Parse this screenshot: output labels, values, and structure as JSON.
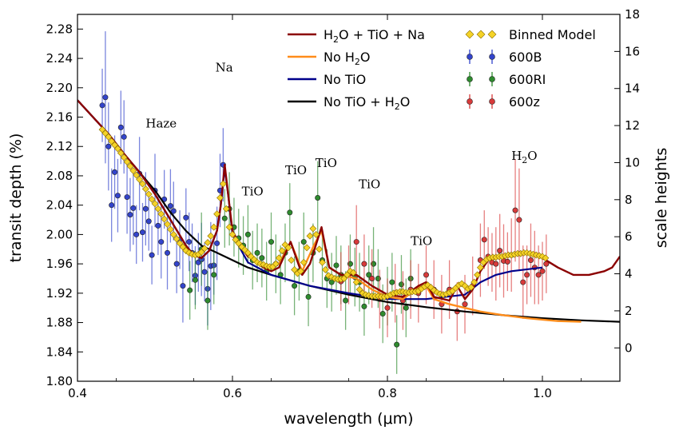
{
  "chart_data": {
    "type": "scatter",
    "xlabel": "wavelength (μm)",
    "ylabel": "transit depth (%)",
    "y2label": "scale heights",
    "xlim": [
      0.4,
      1.1
    ],
    "ylim": [
      1.8,
      2.3
    ],
    "y2lim": [
      -1.8,
      18.0
    ],
    "xticks": [
      "0.4",
      "0.6",
      "0.8",
      "1.0"
    ],
    "xtick_values": [
      0.4,
      0.6,
      0.8,
      1.0
    ],
    "yticks": [
      "1.80",
      "1.84",
      "1.88",
      "1.92",
      "1.96",
      "2.00",
      "2.04",
      "2.08",
      "2.12",
      "2.16",
      "2.20",
      "2.24",
      "2.28"
    ],
    "ytick_values": [
      1.8,
      1.84,
      1.88,
      1.92,
      1.96,
      2.0,
      2.04,
      2.08,
      2.12,
      2.16,
      2.2,
      2.24,
      2.28
    ],
    "y2ticks": [
      "0",
      "2",
      "4",
      "6",
      "8",
      "10",
      "12",
      "14",
      "16",
      "18"
    ],
    "y2tick_values": [
      0,
      2,
      4,
      6,
      8,
      10,
      12,
      14,
      16,
      18
    ],
    "grid": false,
    "legend_placement": "top-right",
    "legend": {
      "lines": [
        {
          "label_main": "H",
          "sub1": "2",
          "label_rest": "O + TiO + Na",
          "color": "#8B0000"
        },
        {
          "label_main": "No H",
          "sub1": "2",
          "label_rest": "O",
          "color": "#FF8C1A"
        },
        {
          "label_main": "No TiO",
          "sub1": "",
          "label_rest": "",
          "color": "#00008B"
        },
        {
          "label_main": "No TiO + H",
          "sub1": "2",
          "label_rest": "O",
          "color": "#000000"
        }
      ],
      "markers": [
        {
          "label": "Binned Model",
          "color": "#F5D327"
        },
        {
          "label": "600B",
          "color": "#3344CC"
        },
        {
          "label": "600RI",
          "color": "#2E8B2E"
        },
        {
          "label": "600z",
          "color": "#D83A3A"
        }
      ]
    },
    "annotations": [
      {
        "text": "Haze",
        "x": 0.488,
        "y": 2.146
      },
      {
        "text": "Na",
        "x": 0.578,
        "y": 2.222
      },
      {
        "text": "TiO",
        "x": 0.612,
        "y": 2.053
      },
      {
        "text": "TiO",
        "x": 0.668,
        "y": 2.082
      },
      {
        "text": "TiO",
        "x": 0.707,
        "y": 2.092
      },
      {
        "text": "TiO",
        "x": 0.763,
        "y": 2.063
      },
      {
        "text": "TiO",
        "x": 0.83,
        "y": 1.986
      },
      {
        "text": "H",
        "sub": "2",
        "rest": "O",
        "x": 0.96,
        "y": 2.102
      }
    ],
    "series": [
      {
        "name": "No TiO + H2O",
        "kind": "line",
        "color": "#000000",
        "x": [
          0.4,
          0.42,
          0.44,
          0.46,
          0.48,
          0.5,
          0.52,
          0.54,
          0.56,
          0.58,
          0.6,
          0.62,
          0.65,
          0.7,
          0.75,
          0.8,
          0.85,
          0.9,
          0.95,
          1.0,
          1.05,
          1.1
        ],
        "y": [
          2.183,
          2.16,
          2.137,
          2.11,
          2.085,
          2.06,
          2.03,
          2.005,
          1.985,
          1.975,
          1.965,
          1.955,
          1.945,
          1.93,
          1.918,
          1.908,
          1.901,
          1.895,
          1.89,
          1.886,
          1.883,
          1.881
        ]
      },
      {
        "name": "No TiO",
        "kind": "line",
        "color": "#00008B",
        "x": [
          0.4,
          0.42,
          0.44,
          0.46,
          0.48,
          0.5,
          0.52,
          0.54,
          0.55,
          0.56,
          0.57,
          0.58,
          0.585,
          0.59,
          0.595,
          0.6,
          0.62,
          0.65,
          0.7,
          0.75,
          0.8,
          0.85,
          0.9,
          0.92,
          0.94,
          0.96,
          1.0
        ],
        "y": [
          2.183,
          2.16,
          2.137,
          2.11,
          2.085,
          2.055,
          2.02,
          1.985,
          1.972,
          1.968,
          1.978,
          2.005,
          2.04,
          2.09,
          2.05,
          2.0,
          1.962,
          1.945,
          1.93,
          1.92,
          1.912,
          1.912,
          1.918,
          1.935,
          1.945,
          1.95,
          1.955
        ]
      },
      {
        "name": "No H2O",
        "kind": "line",
        "color": "#FF8C1A",
        "x": [
          0.6,
          0.62,
          0.64,
          0.66,
          0.675,
          0.69,
          0.705,
          0.715,
          0.725,
          0.74,
          0.76,
          0.78,
          0.8,
          0.82,
          0.84,
          0.85,
          0.86,
          0.88,
          0.9,
          0.92,
          0.95,
          0.98,
          1.0,
          1.02,
          1.05
        ],
        "y": [
          2.0,
          1.975,
          1.955,
          1.96,
          1.99,
          1.95,
          1.985,
          2.005,
          1.955,
          1.945,
          1.94,
          1.925,
          1.915,
          1.912,
          1.928,
          1.93,
          1.912,
          1.905,
          1.9,
          1.895,
          1.89,
          1.886,
          1.884,
          1.882,
          1.881
        ]
      },
      {
        "name": "H2O + TiO + Na",
        "kind": "line",
        "color": "#8B0000",
        "x": [
          0.4,
          0.42,
          0.44,
          0.46,
          0.48,
          0.5,
          0.52,
          0.54,
          0.55,
          0.56,
          0.57,
          0.58,
          0.585,
          0.59,
          0.595,
          0.6,
          0.61,
          0.62,
          0.63,
          0.64,
          0.65,
          0.66,
          0.675,
          0.69,
          0.7,
          0.715,
          0.725,
          0.74,
          0.76,
          0.78,
          0.8,
          0.82,
          0.84,
          0.85,
          0.86,
          0.88,
          0.89,
          0.9,
          0.91,
          0.92,
          0.93,
          0.95,
          0.97,
          0.99,
          1.0,
          1.02,
          1.04,
          1.06,
          1.08,
          1.09,
          1.1
        ],
        "y": [
          2.183,
          2.16,
          2.137,
          2.11,
          2.085,
          2.055,
          2.02,
          1.985,
          1.972,
          1.968,
          1.978,
          2.005,
          2.04,
          2.095,
          2.05,
          2.005,
          1.985,
          1.97,
          1.965,
          1.955,
          1.95,
          1.955,
          1.99,
          1.945,
          1.96,
          2.01,
          1.955,
          1.945,
          1.945,
          1.93,
          1.918,
          1.915,
          1.93,
          1.935,
          1.915,
          1.91,
          1.93,
          1.912,
          1.925,
          1.95,
          1.965,
          1.97,
          1.975,
          1.972,
          1.968,
          1.955,
          1.945,
          1.945,
          1.95,
          1.955,
          1.97
        ]
      },
      {
        "name": "Binned Model",
        "kind": "markers",
        "color": "#F5D327",
        "x": [
          0.432,
          0.436,
          0.44,
          0.444,
          0.448,
          0.452,
          0.456,
          0.46,
          0.464,
          0.468,
          0.472,
          0.476,
          0.48,
          0.484,
          0.488,
          0.492,
          0.496,
          0.5,
          0.504,
          0.508,
          0.512,
          0.516,
          0.52,
          0.524,
          0.528,
          0.532,
          0.536,
          0.54,
          0.544,
          0.548,
          0.552,
          0.556,
          0.56,
          0.564,
          0.568,
          0.572,
          0.576,
          0.58,
          0.584,
          0.588,
          0.592,
          0.596,
          0.6,
          0.604,
          0.608,
          0.612,
          0.616,
          0.62,
          0.624,
          0.628,
          0.632,
          0.636,
          0.64,
          0.644,
          0.648,
          0.652,
          0.656,
          0.66,
          0.664,
          0.668,
          0.672,
          0.676,
          0.68,
          0.684,
          0.688,
          0.692,
          0.696,
          0.7,
          0.704,
          0.708,
          0.712,
          0.716,
          0.72,
          0.724,
          0.728,
          0.732,
          0.736,
          0.74,
          0.744,
          0.748,
          0.752,
          0.756,
          0.76,
          0.764,
          0.768,
          0.772,
          0.776,
          0.78,
          0.784,
          0.788,
          0.792,
          0.796,
          0.8,
          0.804,
          0.808,
          0.812,
          0.816,
          0.82,
          0.824,
          0.828,
          0.832,
          0.836,
          0.84,
          0.844,
          0.848,
          0.852,
          0.856,
          0.86,
          0.864,
          0.868,
          0.872,
          0.876,
          0.88,
          0.884,
          0.888,
          0.892,
          0.896,
          0.9,
          0.904,
          0.908,
          0.912,
          0.916,
          0.92,
          0.924,
          0.928,
          0.932,
          0.936,
          0.94,
          0.944,
          0.948,
          0.952,
          0.956,
          0.96,
          0.964,
          0.968,
          0.972,
          0.976,
          0.98,
          0.984,
          0.988,
          0.992,
          0.996,
          1.0,
          1.004
        ],
        "y": [
          2.143,
          2.138,
          2.133,
          2.127,
          2.122,
          2.117,
          2.111,
          2.105,
          2.099,
          2.093,
          2.087,
          2.081,
          2.075,
          2.069,
          2.062,
          2.055,
          2.048,
          2.042,
          2.035,
          2.028,
          2.021,
          2.014,
          2.007,
          2.0,
          1.994,
          1.988,
          1.983,
          1.978,
          1.975,
          1.973,
          1.972,
          1.973,
          1.976,
          1.981,
          1.989,
          1.998,
          2.01,
          2.028,
          2.05,
          2.069,
          2.035,
          2.01,
          2.0,
          1.993,
          1.988,
          1.983,
          1.979,
          1.975,
          1.97,
          1.966,
          1.962,
          1.96,
          1.959,
          1.957,
          1.956,
          1.956,
          1.96,
          1.968,
          1.978,
          1.986,
          1.982,
          1.965,
          1.952,
          1.947,
          1.95,
          1.962,
          1.982,
          1.998,
          2.008,
          2.0,
          1.98,
          1.962,
          1.952,
          1.944,
          1.942,
          1.94,
          1.939,
          1.939,
          1.94,
          1.945,
          1.95,
          1.948,
          1.935,
          1.925,
          1.92,
          1.918,
          1.917,
          1.916,
          1.916,
          1.916,
          1.915,
          1.915,
          1.916,
          1.918,
          1.92,
          1.921,
          1.922,
          1.922,
          1.921,
          1.921,
          1.922,
          1.922,
          1.923,
          1.926,
          1.929,
          1.931,
          1.928,
          1.924,
          1.921,
          1.919,
          1.918,
          1.919,
          1.921,
          1.923,
          1.927,
          1.931,
          1.933,
          1.93,
          1.926,
          1.928,
          1.935,
          1.945,
          1.955,
          1.962,
          1.966,
          1.968,
          1.969,
          1.969,
          1.97,
          1.97,
          1.971,
          1.972,
          1.972,
          1.973,
          1.974,
          1.974,
          1.975,
          1.975,
          1.974,
          1.973,
          1.972,
          1.971,
          1.97,
          1.968
        ]
      },
      {
        "name": "600B",
        "kind": "errorbar",
        "color": "#3344CC",
        "x": [
          0.432,
          0.436,
          0.44,
          0.444,
          0.448,
          0.452,
          0.456,
          0.46,
          0.464,
          0.468,
          0.472,
          0.476,
          0.48,
          0.484,
          0.488,
          0.492,
          0.496,
          0.5,
          0.504,
          0.508,
          0.512,
          0.516,
          0.52,
          0.524,
          0.528,
          0.532,
          0.536,
          0.54,
          0.544,
          0.548,
          0.552,
          0.556,
          0.56,
          0.564,
          0.568,
          0.572,
          0.576,
          0.58,
          0.584,
          0.588
        ],
        "y": [
          2.176,
          2.187,
          2.12,
          2.04,
          2.085,
          2.053,
          2.146,
          2.133,
          2.051,
          2.027,
          2.036,
          2.0,
          2.083,
          2.003,
          2.035,
          2.018,
          1.972,
          2.06,
          2.012,
          1.99,
          2.048,
          1.975,
          2.039,
          2.032,
          1.96,
          1.993,
          1.93,
          2.023,
          1.99,
          1.975,
          1.944,
          1.962,
          1.966,
          1.949,
          1.926,
          1.957,
          1.958,
          1.988,
          2.06,
          2.095
        ],
        "err": [
          0.05,
          0.09,
          0.06,
          0.05,
          0.05,
          0.05,
          0.05,
          0.05,
          0.05,
          0.05,
          0.05,
          0.04,
          0.05,
          0.04,
          0.05,
          0.04,
          0.04,
          0.05,
          0.04,
          0.05,
          0.04,
          0.05,
          0.05,
          0.04,
          0.04,
          0.04,
          0.05,
          0.04,
          0.04,
          0.04,
          0.04,
          0.04,
          0.05,
          0.04,
          0.05,
          0.06,
          0.04,
          0.05,
          0.05,
          0.05
        ]
      },
      {
        "name": "600RI",
        "kind": "errorbar",
        "color": "#2E8B2E",
        "x": [
          0.545,
          0.552,
          0.56,
          0.568,
          0.576,
          0.59,
          0.596,
          0.602,
          0.608,
          0.614,
          0.62,
          0.626,
          0.632,
          0.638,
          0.644,
          0.65,
          0.656,
          0.662,
          0.668,
          0.674,
          0.68,
          0.686,
          0.692,
          0.698,
          0.704,
          0.71,
          0.716,
          0.722,
          0.728,
          0.734,
          0.74,
          0.746,
          0.752,
          0.758,
          0.764,
          0.77,
          0.776,
          0.782,
          0.788,
          0.794,
          0.8,
          0.806,
          0.812,
          0.818,
          0.824,
          0.83
        ],
        "y": [
          1.924,
          1.938,
          1.98,
          1.91,
          1.945,
          2.022,
          2.035,
          2.01,
          1.995,
          1.985,
          2.0,
          1.965,
          1.975,
          1.968,
          1.95,
          1.99,
          1.96,
          1.945,
          1.975,
          2.03,
          1.93,
          1.95,
          1.99,
          1.915,
          1.975,
          2.05,
          1.965,
          1.94,
          1.935,
          1.958,
          1.945,
          1.91,
          1.96,
          1.942,
          1.935,
          1.902,
          1.945,
          1.96,
          1.94,
          1.892,
          1.916,
          1.935,
          1.85,
          1.932,
          1.9,
          1.94
        ],
        "err": [
          0.04,
          0.04,
          0.05,
          0.04,
          0.04,
          0.04,
          0.05,
          0.04,
          0.04,
          0.04,
          0.04,
          0.04,
          0.04,
          0.04,
          0.04,
          0.04,
          0.04,
          0.04,
          0.04,
          0.04,
          0.04,
          0.04,
          0.04,
          0.04,
          0.04,
          0.05,
          0.04,
          0.04,
          0.04,
          0.04,
          0.04,
          0.04,
          0.04,
          0.04,
          0.04,
          0.04,
          0.04,
          0.05,
          0.04,
          0.04,
          0.04,
          0.04,
          0.04,
          0.04,
          0.04,
          0.04
        ]
      },
      {
        "name": "600z",
        "kind": "errorbar",
        "color": "#D83A3A",
        "x": [
          0.74,
          0.75,
          0.76,
          0.77,
          0.78,
          0.79,
          0.8,
          0.81,
          0.82,
          0.83,
          0.84,
          0.85,
          0.86,
          0.87,
          0.88,
          0.89,
          0.9,
          0.91,
          0.92,
          0.925,
          0.93,
          0.935,
          0.94,
          0.945,
          0.95,
          0.955,
          0.96,
          0.965,
          0.97,
          0.975,
          0.98,
          0.985,
          0.99,
          0.995,
          1.0,
          1.005
        ],
        "y": [
          1.936,
          1.945,
          1.99,
          1.96,
          1.94,
          1.912,
          1.9,
          1.92,
          1.91,
          1.925,
          1.92,
          1.945,
          1.925,
          1.905,
          1.925,
          1.895,
          1.905,
          1.93,
          1.965,
          1.993,
          1.97,
          1.962,
          1.96,
          1.978,
          1.964,
          1.963,
          1.972,
          2.033,
          2.02,
          1.935,
          1.945,
          1.965,
          1.955,
          1.945,
          1.95,
          1.96
        ],
        "err": [
          0.04,
          0.04,
          0.05,
          0.04,
          0.04,
          0.04,
          0.04,
          0.04,
          0.04,
          0.04,
          0.04,
          0.04,
          0.04,
          0.04,
          0.04,
          0.04,
          0.04,
          0.04,
          0.05,
          0.04,
          0.04,
          0.04,
          0.05,
          0.05,
          0.05,
          0.04,
          0.05,
          0.07,
          0.07,
          0.05,
          0.04,
          0.05,
          0.05,
          0.04,
          0.04,
          0.04
        ]
      }
    ]
  }
}
